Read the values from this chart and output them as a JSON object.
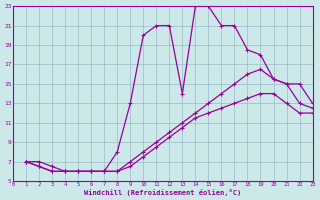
{
  "bg_color": "#cce8e8",
  "grid_color": "#99bbcc",
  "line_color": "#990099",
  "xlabel": "Windchill (Refroidissement éolien,°C)",
  "xlim": [
    0,
    23
  ],
  "ylim": [
    5,
    23
  ],
  "xticks": [
    0,
    1,
    2,
    3,
    4,
    5,
    6,
    7,
    8,
    9,
    10,
    11,
    12,
    13,
    14,
    15,
    16,
    17,
    18,
    19,
    20,
    21,
    22,
    23
  ],
  "yticks": [
    5,
    7,
    9,
    11,
    13,
    15,
    17,
    19,
    21,
    23
  ],
  "line1_x": [
    1,
    2,
    3,
    4,
    5,
    6,
    7,
    8,
    9,
    10,
    11,
    12,
    13,
    14,
    15,
    16,
    17,
    18,
    19,
    20,
    21,
    22,
    23
  ],
  "line1_y": [
    7,
    7,
    6.5,
    6,
    6,
    6,
    6,
    8,
    13,
    20,
    21,
    21,
    14,
    23,
    23,
    21,
    21,
    18.5,
    18,
    15.5,
    15,
    15,
    13
  ],
  "line2_x": [
    1,
    2,
    3,
    4,
    5,
    6,
    7,
    8,
    9,
    10,
    11,
    12,
    13,
    14,
    15,
    16,
    17,
    18,
    19,
    20,
    21,
    22,
    23
  ],
  "line2_y": [
    7,
    6.5,
    6,
    6,
    6,
    6,
    6,
    6,
    7,
    8,
    9,
    10,
    11,
    12,
    13,
    14,
    15,
    16,
    16.5,
    15.5,
    15,
    13,
    12.5
  ],
  "line3_x": [
    1,
    2,
    3,
    4,
    5,
    6,
    7,
    8,
    9,
    10,
    11,
    12,
    13,
    14,
    15,
    16,
    17,
    18,
    19,
    20,
    21,
    22,
    23
  ],
  "line3_y": [
    7,
    6.5,
    6,
    6,
    6,
    6,
    6,
    6,
    6.5,
    7.5,
    8.5,
    9.5,
    10.5,
    11.5,
    12,
    12.5,
    13,
    13.5,
    14,
    14,
    13,
    12,
    12
  ]
}
